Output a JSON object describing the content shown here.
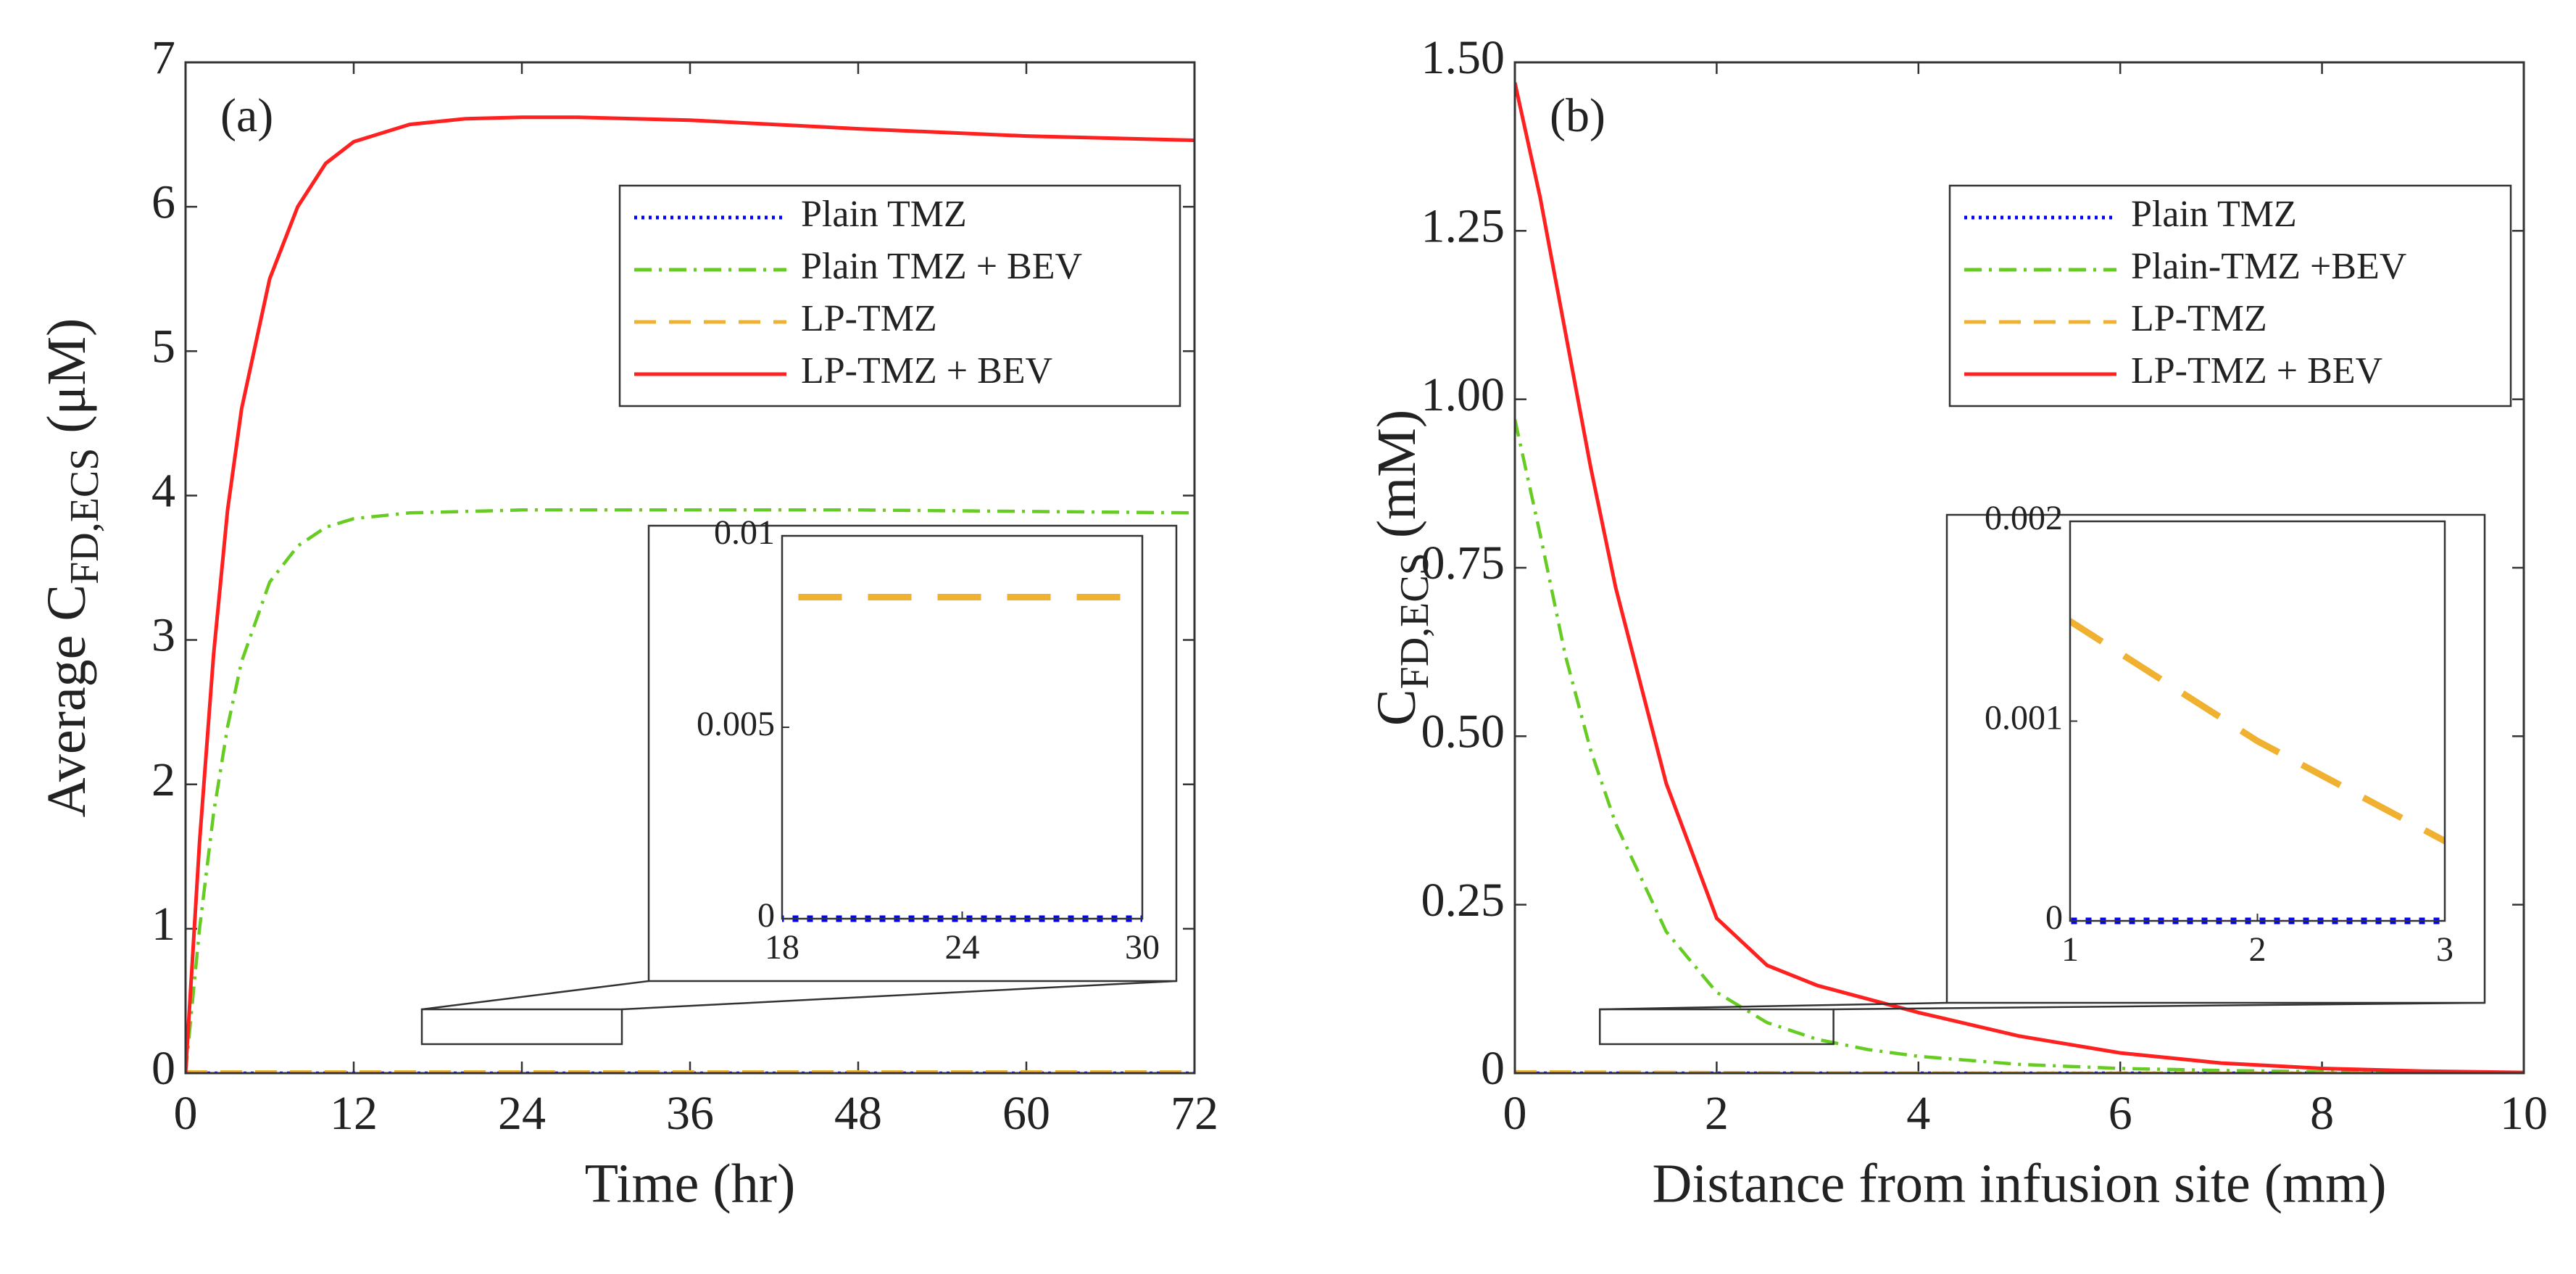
{
  "chart_data": [
    {
      "type": "line",
      "panel": "(a)",
      "xlabel": "Time (hr)",
      "ylabel": {
        "text": "Average C",
        "sub": "FD,ECS",
        "unit": "(μM)"
      },
      "x": [
        0,
        1,
        2,
        3,
        4,
        6,
        8,
        10,
        12,
        16,
        20,
        24,
        28,
        32,
        36,
        48,
        60,
        72
      ],
      "series": [
        {
          "name": "Plain TMZ",
          "color": "#0000ff",
          "style": "dotted",
          "values": [
            0,
            0,
            0,
            0,
            0,
            0,
            0,
            0,
            0,
            0,
            0,
            0,
            0,
            0,
            0,
            0,
            0,
            0
          ]
        },
        {
          "name": "Plain TMZ + BEV",
          "color": "#66cc22",
          "style": "dashdot",
          "values": [
            0,
            1.0,
            1.8,
            2.4,
            2.85,
            3.4,
            3.65,
            3.78,
            3.84,
            3.88,
            3.89,
            3.9,
            3.9,
            3.9,
            3.9,
            3.9,
            3.89,
            3.88
          ]
        },
        {
          "name": "LP-TMZ",
          "color": "#f0b030",
          "style": "dashed",
          "values": [
            0.0084,
            0.0084,
            0.0084,
            0.0084,
            0.0084,
            0.0084,
            0.0084,
            0.0084,
            0.0084,
            0.0084,
            0.0084,
            0.0084,
            0.0084,
            0.0084,
            0.0084,
            0.0084,
            0.0084,
            0.0084
          ]
        },
        {
          "name": "LP-TMZ + BEV",
          "color": "#ff2020",
          "style": "solid",
          "values": [
            0,
            1.6,
            2.9,
            3.9,
            4.6,
            5.5,
            6.0,
            6.3,
            6.45,
            6.57,
            6.61,
            6.62,
            6.62,
            6.61,
            6.6,
            6.54,
            6.49,
            6.46
          ]
        }
      ],
      "xlim": [
        0,
        72
      ],
      "xticks": [
        0,
        12,
        24,
        36,
        48,
        60,
        72
      ],
      "ylim": [
        0,
        7
      ],
      "yticks": [
        0,
        1,
        2,
        3,
        4,
        5,
        6,
        7
      ],
      "legend": "upper right",
      "inset": {
        "xlim": [
          18,
          30
        ],
        "xticks": [
          18,
          24,
          30
        ],
        "ylim": [
          0,
          0.01
        ],
        "yticks": [
          0,
          0.005,
          0.01
        ]
      }
    },
    {
      "type": "line",
      "panel": "(b)",
      "xlabel": "Distance from infusion site (mm)",
      "ylabel": {
        "text": "C",
        "sub": "FD,ECS",
        "unit": "(mM)"
      },
      "x": [
        0,
        0.25,
        0.5,
        0.75,
        1,
        1.5,
        2,
        2.5,
        3,
        3.5,
        4,
        5,
        6,
        7,
        8,
        9,
        10
      ],
      "series": [
        {
          "name": "Plain TMZ",
          "color": "#0000ff",
          "style": "dotted",
          "values": [
            0,
            0,
            0,
            0,
            0,
            0,
            0,
            0,
            0,
            0,
            0,
            0,
            0,
            0,
            0,
            0,
            0
          ]
        },
        {
          "name": "Plain-TMZ +BEV",
          "color": "#66cc22",
          "style": "dashdot",
          "values": [
            0.97,
            0.8,
            0.62,
            0.48,
            0.37,
            0.21,
            0.12,
            0.075,
            0.05,
            0.035,
            0.025,
            0.013,
            0.007,
            0.004,
            0.002,
            0.001,
            0
          ]
        },
        {
          "name": "LP-TMZ",
          "color": "#f0b030",
          "style": "dashed",
          "values": [
            0.002,
            0.0019,
            0.0018,
            0.0016,
            0.0015,
            0.0012,
            0.0009,
            0.00065,
            0.0004,
            0.0003,
            0.0002,
            0.0001,
            5e-05,
            0,
            0,
            0,
            0
          ]
        },
        {
          "name": "LP-TMZ + BEV",
          "color": "#ff2020",
          "style": "solid",
          "values": [
            1.47,
            1.3,
            1.1,
            0.9,
            0.72,
            0.43,
            0.23,
            0.16,
            0.13,
            0.11,
            0.09,
            0.055,
            0.03,
            0.015,
            0.007,
            0.003,
            0.001
          ]
        }
      ],
      "xlim": [
        0,
        10
      ],
      "xticks": [
        0,
        2,
        4,
        6,
        8,
        10
      ],
      "ylim": [
        0,
        1.5
      ],
      "yticks": [
        0,
        0.25,
        {
          "value": 0.5,
          "label": "0.50"
        },
        0.75,
        {
          "value": 1,
          "label": "1.00"
        },
        1.25,
        {
          "value": 1.5,
          "label": "1.50"
        }
      ],
      "legend": "upper right",
      "inset": {
        "xlim": [
          1,
          3
        ],
        "xticks": [
          1,
          2,
          3
        ],
        "ylim": [
          0,
          0.002
        ],
        "yticks": [
          0,
          0.001,
          0.002
        ]
      }
    }
  ]
}
